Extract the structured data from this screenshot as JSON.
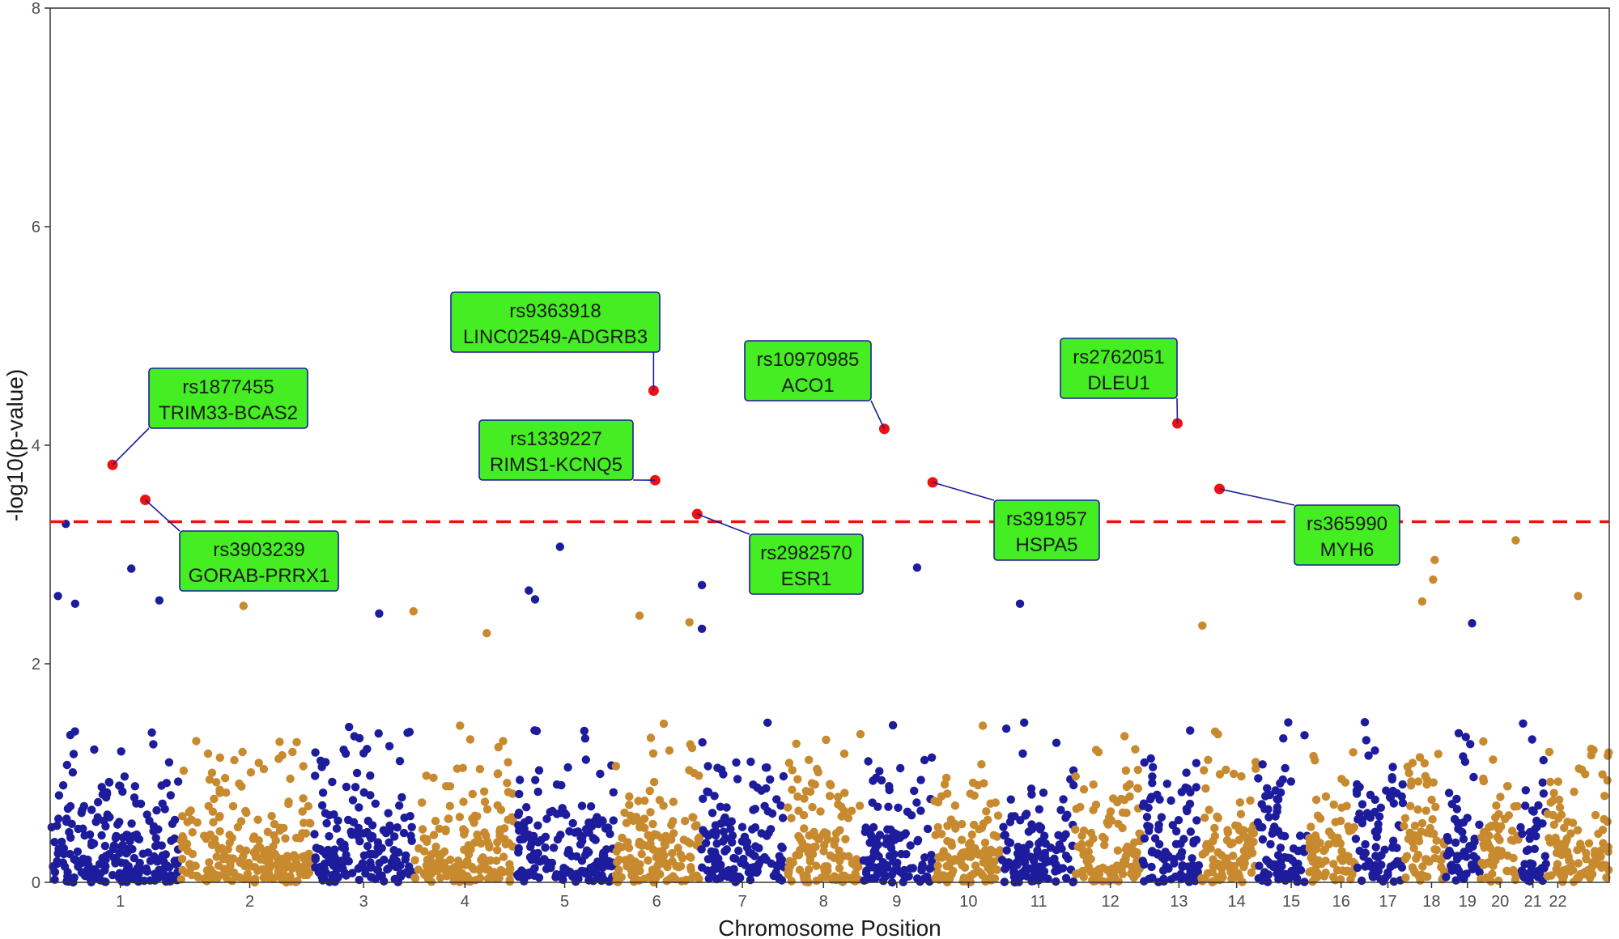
{
  "chart_data": {
    "type": "scatter",
    "subtype": "manhattan",
    "title": "",
    "xlabel": "Chromosome Position",
    "ylabel": "-log10(p-value)",
    "ylim": [
      0,
      8
    ],
    "yticks": [
      0,
      2,
      4,
      6,
      8
    ],
    "grid": false,
    "legend": "none",
    "threshold": 3.3,
    "colors": {
      "odd": "#1c1c9c",
      "even": "#c88a2e",
      "highlight": "#ee1111",
      "threshold": "#ee1111",
      "label_fill": "#44ee22",
      "label_border": "#1c1c9c"
    },
    "chromosomes": [
      {
        "name": "1",
        "x_center": 0.045
      },
      {
        "name": "2",
        "x_center": 0.128
      },
      {
        "name": "3",
        "x_center": 0.201
      },
      {
        "name": "4",
        "x_center": 0.266
      },
      {
        "name": "5",
        "x_center": 0.33
      },
      {
        "name": "6",
        "x_center": 0.389
      },
      {
        "name": "7",
        "x_center": 0.444
      },
      {
        "name": "8",
        "x_center": 0.496
      },
      {
        "name": "9",
        "x_center": 0.543
      },
      {
        "name": "10",
        "x_center": 0.589
      },
      {
        "name": "11",
        "x_center": 0.634
      },
      {
        "name": "12",
        "x_center": 0.68
      },
      {
        "name": "13",
        "x_center": 0.724
      },
      {
        "name": "14",
        "x_center": 0.761
      },
      {
        "name": "15",
        "x_center": 0.796
      },
      {
        "name": "16",
        "x_center": 0.828
      },
      {
        "name": "17",
        "x_center": 0.858
      },
      {
        "name": "18",
        "x_center": 0.886
      },
      {
        "name": "19",
        "x_center": 0.909
      },
      {
        "name": "20",
        "x_center": 0.93
      },
      {
        "name": "21",
        "x_center": 0.951
      },
      {
        "name": "22",
        "x_center": 0.967
      }
    ],
    "chrom_bounds": [
      0,
      0.083,
      0.168,
      0.233,
      0.298,
      0.362,
      0.417,
      0.472,
      0.521,
      0.566,
      0.61,
      0.657,
      0.7,
      0.738,
      0.774,
      0.807,
      0.837,
      0.868,
      0.895,
      0.917,
      0.942,
      0.96,
      1.0
    ],
    "highlights": [
      {
        "snp": "rs1877455",
        "gene": "TRIM33-BCAS2",
        "chr": "1",
        "x": 0.04,
        "y": 3.82
      },
      {
        "snp": "rs3903239",
        "gene": "GORAB-PRRX1",
        "chr": "1",
        "x": 0.061,
        "y": 3.5
      },
      {
        "snp": "rs9363918",
        "gene": "LINC02549-ADGRB3",
        "chr": "6",
        "x": 0.387,
        "y": 4.5
      },
      {
        "snp": "rs1339227",
        "gene": "RIMS1-KCNQ5",
        "chr": "6",
        "x": 0.388,
        "y": 3.68
      },
      {
        "snp": "rs2982570",
        "gene": "ESR1",
        "chr": "6",
        "x": 0.415,
        "y": 3.37
      },
      {
        "snp": "rs10970985",
        "gene": "ACO1",
        "chr": "9",
        "x": 0.535,
        "y": 4.15
      },
      {
        "snp": "rs391957",
        "gene": "HSPA5",
        "chr": "9",
        "x": 0.566,
        "y": 3.66
      },
      {
        "snp": "rs2762051",
        "gene": "DLEU1",
        "chr": "13",
        "x": 0.723,
        "y": 4.2
      },
      {
        "snp": "rs365990",
        "gene": "MYH6",
        "chr": "14",
        "x": 0.75,
        "y": 3.6
      }
    ],
    "notable_points": [
      {
        "x": 0.01,
        "y": 3.28
      },
      {
        "x": 0.005,
        "y": 2.62
      },
      {
        "x": 0.016,
        "y": 2.55
      },
      {
        "x": 0.052,
        "y": 2.87
      },
      {
        "x": 0.07,
        "y": 2.58
      },
      {
        "x": 0.124,
        "y": 2.53
      },
      {
        "x": 0.211,
        "y": 2.46
      },
      {
        "x": 0.233,
        "y": 2.48
      },
      {
        "x": 0.28,
        "y": 2.28
      },
      {
        "x": 0.307,
        "y": 2.67
      },
      {
        "x": 0.311,
        "y": 2.59
      },
      {
        "x": 0.327,
        "y": 3.07
      },
      {
        "x": 0.378,
        "y": 2.44
      },
      {
        "x": 0.41,
        "y": 2.38
      },
      {
        "x": 0.418,
        "y": 2.72
      },
      {
        "x": 0.418,
        "y": 2.32
      },
      {
        "x": 0.556,
        "y": 2.88
      },
      {
        "x": 0.622,
        "y": 2.55
      },
      {
        "x": 0.739,
        "y": 2.35
      },
      {
        "x": 0.888,
        "y": 2.95
      },
      {
        "x": 0.887,
        "y": 2.77
      },
      {
        "x": 0.88,
        "y": 2.57
      },
      {
        "x": 0.94,
        "y": 3.13
      },
      {
        "x": 0.98,
        "y": 2.62
      },
      {
        "x": 0.912,
        "y": 2.37
      }
    ]
  }
}
